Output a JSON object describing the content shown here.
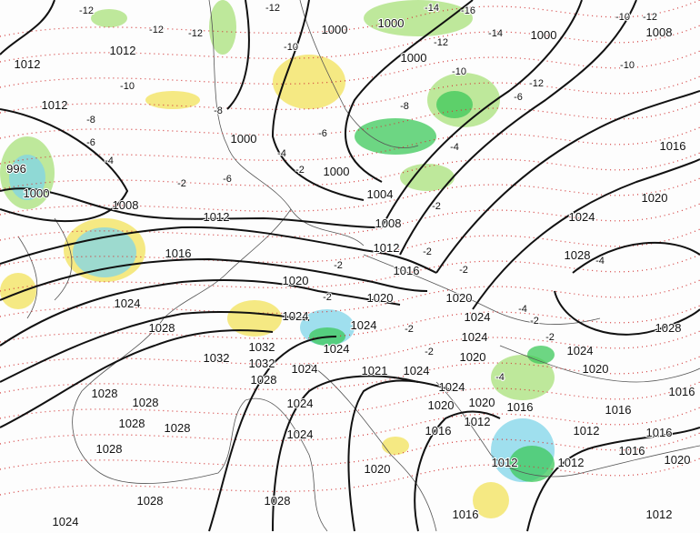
{
  "map": {
    "colors": {
      "isobar": "#111111",
      "temperature_dotted": "#d23a3a",
      "coastline": "#555555",
      "precip_light": "#a8e07a",
      "precip_green": "#3cc85a",
      "precip_yellow": "#f2e25a",
      "precip_cyan": "#7fd4e8"
    },
    "isobar_labels": [
      "1012",
      "1012",
      "1000",
      "996",
      "1000",
      "1008",
      "1012",
      "1016",
      "1020",
      "1024",
      "1028",
      "1024",
      "1032",
      "1032",
      "1032",
      "1028",
      "1024",
      "1024",
      "1024",
      "1024",
      "1024",
      "1028",
      "1028",
      "1028",
      "1028",
      "1028",
      "1028",
      "1028",
      "1024",
      "1020",
      "1016",
      "1016",
      "1012",
      "1012",
      "1020",
      "1012",
      "1016",
      "1016",
      "1012",
      "1016",
      "1016",
      "1020",
      "1012",
      "1016",
      "1020",
      "1024",
      "1028",
      "1028",
      "1024",
      "1020",
      "1016",
      "1004",
      "1000",
      "1008",
      "1012",
      "1016",
      "1020",
      "1020",
      "1024",
      "1024",
      "1020",
      "1021",
      "1024",
      "1024",
      "1020",
      "1000",
      "1000",
      "1000",
      "1000",
      "1008",
      "1012"
    ],
    "temperature_labels": [
      "-12",
      "-12",
      "-12",
      "-12",
      "-10",
      "-8",
      "-6",
      "-4",
      "-2",
      "-10",
      "-8",
      "-6",
      "-6",
      "-4",
      "-2",
      "-14",
      "-16",
      "-12",
      "-14",
      "-10",
      "-12",
      "-8",
      "-6",
      "-4",
      "-2",
      "-2",
      "-2",
      "-2",
      "-2",
      "-2",
      "-4",
      "-10",
      "-12",
      "-10",
      "-4",
      "-2",
      "-2",
      "-2",
      "-4"
    ]
  }
}
